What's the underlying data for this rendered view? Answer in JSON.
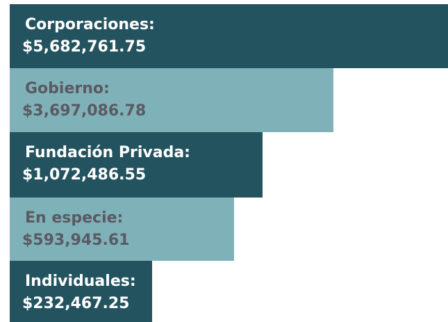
{
  "items": [
    {
      "label": "Corporaciones:",
      "amount": "$5,682,761.75"
    },
    {
      "label": "Gobierno:",
      "amount": "$3,697,086.78"
    },
    {
      "label": "Fundación Privada:",
      "amount": "$1,072,486.55"
    },
    {
      "label": "En especie:",
      "amount": "$593,945.61"
    },
    {
      "label": "Individuales:",
      "amount": "$232,467.25"
    }
  ]
}
